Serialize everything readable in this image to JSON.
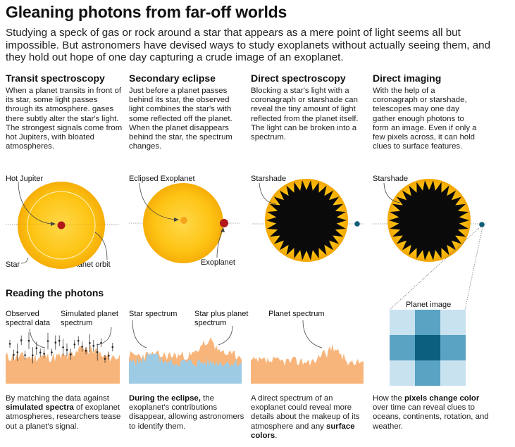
{
  "title": "Gleaning photons from far-off worlds",
  "intro": "Studying a speck of gas or rock around a star that appears as a mere point of light seems all but impossible. But astronomers have devised ways to study exoplanets without actually seeing them, and they hold out hope of one day capturing a crude image of an exoplanet.",
  "columns": [
    {
      "title": "Transit spectroscopy",
      "text": "When a planet transits in front of its star, some light passes through its atmosphere. gases there subtly alter the star's light. The strongest signals come from hot Jupiters, with bloated atmospheres."
    },
    {
      "title": "Secondary eclipse",
      "text": "Just before a planet passes behind its star, the observed light combines the star's with some reflected off the planet. When the planet disappears behind the star, the spectrum changes."
    },
    {
      "title": "Direct spectroscopy",
      "text": "Blocking a star's light with a coronagraph or starshade can reveal the tiny amount of light reflected from the planet itself. The light can be broken into a spectrum."
    },
    {
      "title": "Direct imaging",
      "text": "With the help of a coronagraph or starshade, telescopes may one day gather enough photons to form an image. Even if only a few pixels across, it can hold clues to surface features."
    }
  ],
  "labels": {
    "hot_jupiter": "Hot Jupiter",
    "star": "Star",
    "planet_orbit": "Planet orbit",
    "eclipsed_exoplanet": "Eclipsed Exoplanet",
    "exoplanet": "Exoplanet",
    "starshade_1": "Starshade",
    "starshade_2": "Starshade",
    "planet_image": "Planet image"
  },
  "section_title": "Reading the photons",
  "spectra_labels": {
    "observed_line1": "Observed",
    "observed_line2": "spectral data",
    "simulated_line1": "Simulated planet",
    "simulated_line2": "spectrum",
    "star_spectrum": "Star spectrum",
    "star_plus_line1": "Star plus planet",
    "star_plus_line2": "spectrum",
    "planet_spectrum": "Planet spectrum"
  },
  "captions": [
    {
      "pre": "By matching the data against ",
      "bold": "simulated spectra",
      "post": " of exoplanet atmospheres, researchers tease out a planet's signal."
    },
    {
      "pre": "",
      "bold": "During the eclipse,",
      "post": " the exoplanet's contributions disappear, allowing astronomers to identify them."
    },
    {
      "pre": "A direct spectrum of an exoplanet could reveal more details about the makeup of its atmosphere and any ",
      "bold": "surface colors",
      "post": "."
    },
    {
      "pre": "How the ",
      "bold": "pixels change color",
      "post": " over time can reveal clues to oceans, continents, rotation, and weather."
    }
  ],
  "colors": {
    "star_yellow": "#fdc010",
    "star_core": "#ffd42a",
    "planet_red": "#b0181b",
    "planet_blue": "#115f7a",
    "spectrum_orange": "#f8b57b",
    "spectrum_blue": "#9ccbe3",
    "pixel_light": "#c9e2f0",
    "pixel_mid": "#5aa3c3",
    "pixel_dark": "#0d5f80"
  }
}
